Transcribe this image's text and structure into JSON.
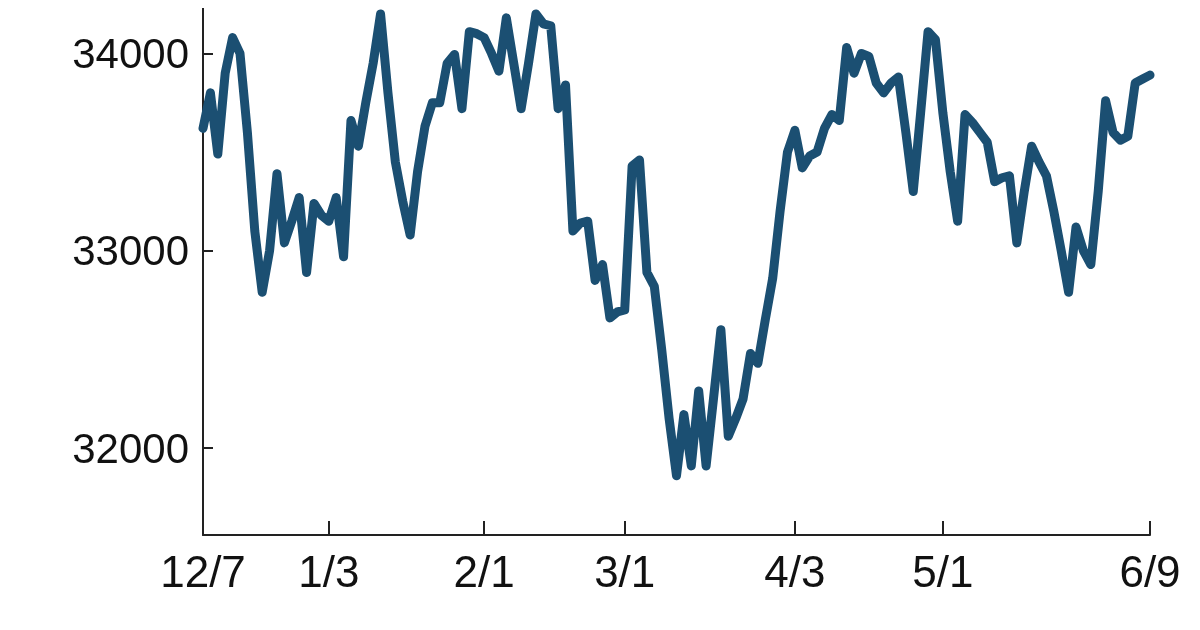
{
  "chart_data": {
    "type": "line",
    "categories": [
      "12/7",
      null,
      null,
      null,
      null,
      null,
      null,
      null,
      null,
      null,
      null,
      null,
      null,
      null,
      null,
      null,
      null,
      "1/3",
      null,
      null,
      null,
      null,
      null,
      null,
      null,
      null,
      null,
      null,
      null,
      null,
      null,
      null,
      null,
      null,
      null,
      null,
      null,
      null,
      "2/1",
      null,
      null,
      null,
      null,
      null,
      null,
      null,
      null,
      null,
      null,
      null,
      null,
      null,
      null,
      null,
      null,
      null,
      null,
      "3/1",
      null,
      null,
      null,
      null,
      null,
      null,
      null,
      null,
      null,
      null,
      null,
      null,
      null,
      null,
      null,
      null,
      null,
      null,
      null,
      null,
      null,
      null,
      "4/3",
      null,
      null,
      null,
      null,
      null,
      null,
      null,
      null,
      null,
      null,
      null,
      null,
      null,
      null,
      null,
      null,
      null,
      null,
      null,
      "5/1",
      null,
      null,
      null,
      null,
      null,
      null,
      null,
      null,
      null,
      null,
      null,
      null,
      null,
      null,
      null,
      null,
      null,
      null,
      null,
      null,
      null,
      null,
      null,
      null,
      null,
      null,
      null,
      "6/9"
    ],
    "series": [
      {
        "color": "#1b4f72",
        "values": [
          33620,
          33800,
          33490,
          33900,
          34080,
          34000,
          33600,
          33100,
          32790,
          33000,
          33390,
          33040,
          33150,
          33270,
          32890,
          33240,
          33180,
          33150,
          33270,
          32970,
          33660,
          33530,
          33750,
          33950,
          34200,
          33800,
          33450,
          33250,
          33080,
          33400,
          33630,
          33750,
          33750,
          33950,
          33995,
          33720,
          34110,
          34100,
          34080,
          34000,
          33910,
          34180,
          33950,
          33720,
          33950,
          34200,
          34150,
          34140,
          33720,
          33840,
          33100,
          33140,
          33150,
          32850,
          32930,
          32660,
          32690,
          32700,
          33430,
          33460,
          32890,
          32820,
          32500,
          32150,
          31860,
          32170,
          31910,
          32290,
          31910,
          32250,
          32600,
          32060,
          32150,
          32250,
          32480,
          32430,
          32650,
          32860,
          33200,
          33500,
          33610,
          33420,
          33480,
          33500,
          33620,
          33690,
          33660,
          34030,
          33900,
          34000,
          33985,
          33850,
          33800,
          33850,
          33880,
          33600,
          33300,
          33700,
          34110,
          34070,
          33700,
          33400,
          33150,
          33690,
          33650,
          33600,
          33550,
          33350,
          33370,
          33380,
          33040,
          33300,
          33530,
          33450,
          33380,
          33200,
          33000,
          32790,
          33120,
          33000,
          32930,
          33300,
          33760,
          33600,
          33560,
          33580,
          33850,
          33870,
          33890
        ]
      }
    ],
    "ylim": [
      31560,
      34230
    ],
    "yticks": [
      32000,
      33000,
      34000
    ],
    "grid": false,
    "line_style": "solid"
  }
}
